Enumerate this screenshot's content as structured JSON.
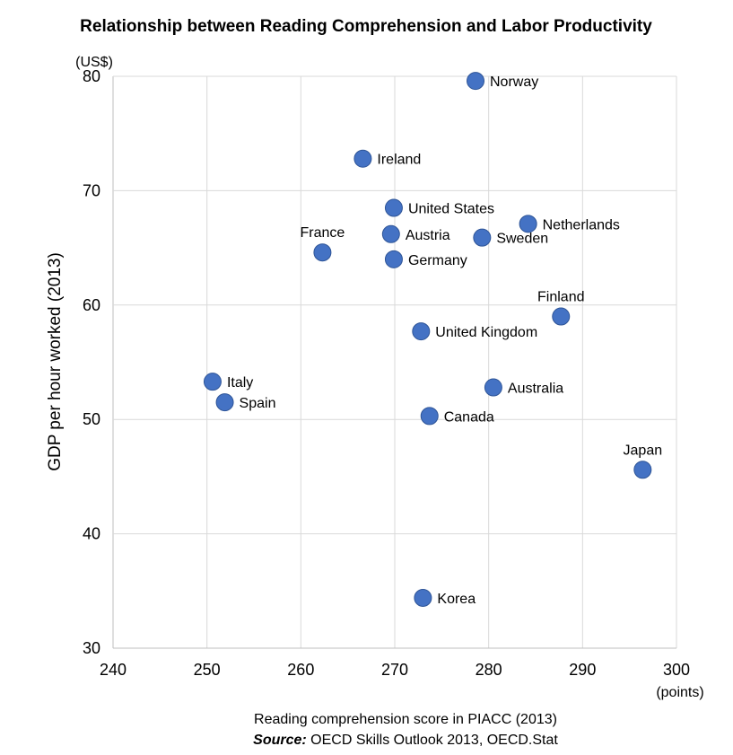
{
  "chart_data": {
    "type": "scatter",
    "title": "Relationship between Reading Comprehension and Labor Productivity",
    "xlabel": "Reading comprehension  score in PIACC (2013)",
    "ylabel": "GDP per hour worked (2013)",
    "x_unit": "(points)",
    "y_unit": "(US$)",
    "source_label": "Source:",
    "source_text": " OECD Skills Outlook 2013, OECD.Stat",
    "xlim": [
      240,
      300
    ],
    "ylim": [
      30,
      80
    ],
    "xticks": [
      240,
      250,
      260,
      270,
      280,
      290,
      300
    ],
    "yticks": [
      30,
      40,
      50,
      60,
      70,
      80
    ],
    "grid": true,
    "marker_color": "#4472C4",
    "marker_edge": "#2F5597",
    "points": [
      {
        "label": "Norway",
        "x": 278.6,
        "y": 79.6,
        "pos": "right"
      },
      {
        "label": "Ireland",
        "x": 266.6,
        "y": 72.8,
        "pos": "right"
      },
      {
        "label": "United States",
        "x": 269.9,
        "y": 68.5,
        "pos": "right"
      },
      {
        "label": "Netherlands",
        "x": 284.2,
        "y": 67.1,
        "pos": "right"
      },
      {
        "label": "Austria",
        "x": 269.6,
        "y": 66.2,
        "pos": "right"
      },
      {
        "label": "Sweden",
        "x": 279.3,
        "y": 65.9,
        "pos": "right"
      },
      {
        "label": "France",
        "x": 262.3,
        "y": 64.6,
        "pos": "top"
      },
      {
        "label": "Germany",
        "x": 269.9,
        "y": 64.0,
        "pos": "right"
      },
      {
        "label": "Finland",
        "x": 287.7,
        "y": 59.0,
        "pos": "top"
      },
      {
        "label": "United Kingdom",
        "x": 272.8,
        "y": 57.7,
        "pos": "right"
      },
      {
        "label": "Italy",
        "x": 250.6,
        "y": 53.3,
        "pos": "right"
      },
      {
        "label": "Spain",
        "x": 251.9,
        "y": 51.5,
        "pos": "right"
      },
      {
        "label": "Australia",
        "x": 280.5,
        "y": 52.8,
        "pos": "right"
      },
      {
        "label": "Canada",
        "x": 273.7,
        "y": 50.3,
        "pos": "right"
      },
      {
        "label": "Japan",
        "x": 296.4,
        "y": 45.6,
        "pos": "top"
      },
      {
        "label": "Korea",
        "x": 273.0,
        "y": 34.4,
        "pos": "right"
      }
    ]
  }
}
